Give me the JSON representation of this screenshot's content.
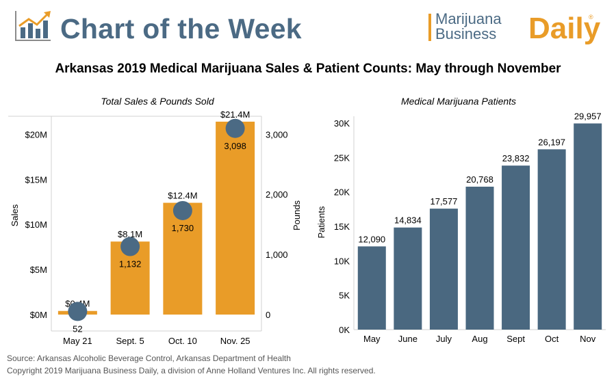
{
  "header": {
    "title": "Chart of the Week",
    "brand_line1": "Marijuana",
    "brand_line2": "Business",
    "brand_word": "Daily",
    "brand_mark": "®"
  },
  "main_title": "Arkansas 2019 Medical Marijuana Sales & Patient Counts: May through November",
  "colors": {
    "sales_bar": "#e99c28",
    "pounds_marker": "#4b6a84",
    "patient_bar": "#4a6880",
    "header_text": "#4b6a84"
  },
  "chart_data": [
    {
      "type": "bar",
      "title": "Total Sales & Pounds Sold",
      "categories": [
        "May 21",
        "Sept. 5",
        "Oct. 10",
        "Nov. 25"
      ],
      "series": [
        {
          "name": "Sales",
          "type": "bar",
          "axis": "left",
          "values": [
            0.4,
            8.1,
            12.4,
            21.4
          ],
          "labels": [
            "$0.4M",
            "$8.1M",
            "$12.4M",
            "$21.4M"
          ]
        },
        {
          "name": "Pounds",
          "type": "scatter",
          "axis": "right",
          "values": [
            52,
            1132,
            1730,
            3098
          ],
          "labels": [
            "52",
            "1,132",
            "1,730",
            "3,098"
          ]
        }
      ],
      "ylabel": "Sales",
      "ylim": [
        0,
        22
      ],
      "yticks": [
        0,
        5,
        10,
        15,
        20
      ],
      "ytick_labels": [
        "$0M",
        "$5M",
        "$10M",
        "$15M",
        "$20M"
      ],
      "y2label": "Pounds",
      "y2lim": [
        0,
        3300
      ],
      "y2ticks": [
        0,
        1000,
        2000,
        3000
      ],
      "y2tick_labels": [
        "0",
        "1,000",
        "2,000",
        "3,000"
      ],
      "grid": false,
      "legend": "none"
    },
    {
      "type": "bar",
      "title": "Medical Marijuana Patients",
      "categories": [
        "May",
        "June",
        "July",
        "Aug",
        "Sept",
        "Oct",
        "Nov"
      ],
      "values": [
        12090,
        14834,
        17577,
        20768,
        23832,
        26197,
        29957
      ],
      "labels": [
        "12,090",
        "14,834",
        "17,577",
        "20,768",
        "23,832",
        "26,197",
        "29,957"
      ],
      "ylabel": "Patients",
      "ylim": [
        0,
        31000
      ],
      "yticks": [
        0,
        5000,
        10000,
        15000,
        20000,
        25000,
        30000
      ],
      "ytick_labels": [
        "0K",
        "5K",
        "10K",
        "15K",
        "20K",
        "25K",
        "30K"
      ],
      "grid": false,
      "legend": "none"
    }
  ],
  "footer": {
    "source": "Source: Arkansas Alcoholic Beverage Control, Arkansas Department of Health",
    "copyright": "Copyright 2019 Marijuana Business Daily, a division of Anne Holland Ventures Inc. All rights reserved."
  }
}
